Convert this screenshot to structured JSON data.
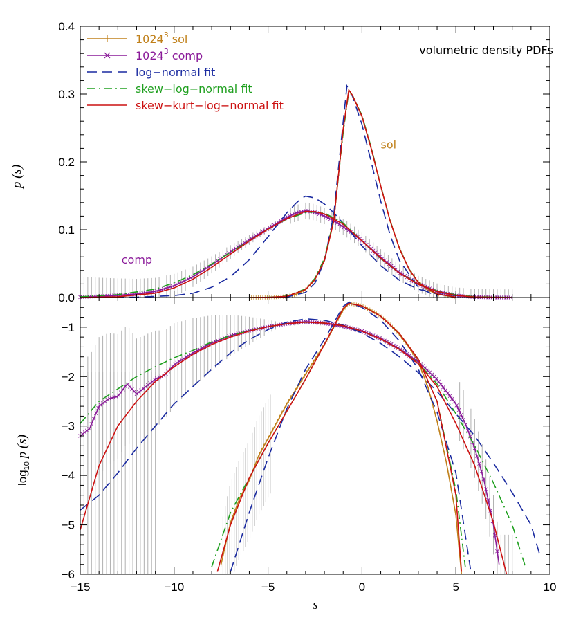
{
  "chart_data": [
    {
      "type": "line",
      "annotation": "volumetric density PDFs",
      "xlabel": "s",
      "ylabel": "p (s)",
      "xlim": [
        -15,
        10
      ],
      "ylim": [
        0,
        0.4
      ],
      "x_ticks": [
        "−15",
        "−10",
        "−5",
        "0",
        "5",
        "10"
      ],
      "y_ticks": [
        "0.0",
        "0.1",
        "0.2",
        "0.3",
        "0.4"
      ],
      "curve_labels": [
        {
          "text": "sol",
          "color": "#c0801a",
          "at": [
            1.0,
            0.22
          ]
        },
        {
          "text": "comp",
          "color": "#8a1a99",
          "at": [
            -12.8,
            0.05
          ]
        }
      ],
      "legend": {
        "placement": "top-left",
        "entries": [
          {
            "label": "1024",
            "sup": "3",
            "label2": "sol",
            "color": "#c0801a",
            "style": "solid-plus"
          },
          {
            "label": "1024",
            "sup": "3",
            "label2": "comp",
            "color": "#8a1a99",
            "style": "solid-x"
          },
          {
            "label": "log−normal fit",
            "color": "#1a2aa0",
            "style": "dashed"
          },
          {
            "label": "skew−log−normal fit",
            "color": "#20a020",
            "style": "dashdot"
          },
          {
            "label": "skew−kurt−log−normal fit",
            "color": "#cc1111",
            "style": "solid"
          }
        ]
      },
      "series": [
        {
          "name": "1024³ sol",
          "color": "#c0801a",
          "x": [
            -6,
            -5,
            -4,
            -3.5,
            -3,
            -2.5,
            -2,
            -1.5,
            -1,
            -0.7,
            -0.5,
            0,
            0.5,
            1,
            1.5,
            2,
            2.5,
            3,
            3.5,
            4,
            5
          ],
          "y": [
            0.0,
            0.0002,
            0.0016,
            0.0046,
            0.0117,
            0.0267,
            0.0544,
            0.1134,
            0.2478,
            0.306,
            0.298,
            0.267,
            0.219,
            0.164,
            0.113,
            0.072,
            0.042,
            0.022,
            0.011,
            0.005,
            0.0006
          ]
        },
        {
          "name": "1024³ comp",
          "color": "#8a1a99",
          "x": [
            -15,
            -14,
            -13,
            -12,
            -11,
            -10,
            -9,
            -8,
            -7,
            -6,
            -5,
            -4,
            -3.5,
            -3,
            -2.5,
            -2,
            -1.5,
            -1,
            -0.5,
            0,
            0.5,
            1,
            2,
            3,
            4,
            5,
            6,
            7,
            8
          ],
          "y": [
            0.0006,
            0.0017,
            0.0032,
            0.005,
            0.009,
            0.0174,
            0.0305,
            0.0481,
            0.0672,
            0.0852,
            0.1016,
            0.1181,
            0.1246,
            0.1279,
            0.1256,
            0.1201,
            0.1134,
            0.1043,
            0.0947,
            0.0837,
            0.0716,
            0.0593,
            0.0367,
            0.0199,
            0.0087,
            0.0029,
            0.0007,
            0.0001,
            0.0
          ]
        },
        {
          "name": "log−normal fit",
          "color": "#1a2aa0",
          "x": [
            -14,
            -12,
            -10,
            -9,
            -8,
            -7,
            -6,
            -5,
            -4.5,
            -4,
            -3.5,
            -3.2,
            -3,
            -2.5,
            -2,
            -1.5,
            -1,
            0,
            1,
            2,
            3,
            4,
            6,
            8
          ],
          "y": [
            0.0,
            0.0005,
            0.0029,
            0.0062,
            0.0152,
            0.0307,
            0.0556,
            0.0896,
            0.1075,
            0.1249,
            0.1393,
            0.1464,
            0.1494,
            0.1467,
            0.1378,
            0.1249,
            0.1096,
            0.0762,
            0.0466,
            0.0254,
            0.0122,
            0.0052,
            0.0007,
            0.0
          ]
        },
        {
          "name": "log−normal fit",
          "color": "#1a2aa0",
          "x": [
            -5,
            -4,
            -3,
            -2.5,
            -2,
            -1.5,
            -1,
            -0.8,
            -0.5,
            0,
            0.5,
            1,
            1.5,
            2,
            3,
            4
          ],
          "y": [
            0.0,
            0.0007,
            0.0076,
            0.0213,
            0.0537,
            0.1234,
            0.2586,
            0.3118,
            0.2965,
            0.2552,
            0.1991,
            0.1417,
            0.092,
            0.0545,
            0.0146,
            0.0018
          ]
        },
        {
          "name": "skew−log−normal fit",
          "color": "#20a020",
          "x": [
            -15,
            -13,
            -11,
            -10,
            -9,
            -8,
            -7,
            -6,
            -5,
            -4,
            -3,
            -2.5,
            -2,
            -1,
            0,
            1,
            2,
            3,
            4,
            5,
            6,
            8
          ],
          "y": [
            0.0011,
            0.0042,
            0.0124,
            0.0216,
            0.0336,
            0.0495,
            0.0664,
            0.0837,
            0.1007,
            0.1157,
            0.1251,
            0.1262,
            0.1247,
            0.1098,
            0.0838,
            0.0572,
            0.0359,
            0.0203,
            0.0098,
            0.0038,
            0.0012,
            0.0
          ]
        },
        {
          "name": "skew−log−normal fit",
          "color": "#20a020",
          "x": [
            -6,
            -5,
            -4,
            -3,
            -2.5,
            -2,
            -1.5,
            -1,
            -0.7,
            -0.5,
            0,
            0.5,
            1,
            1.5,
            2,
            2.5,
            3,
            4,
            5
          ],
          "y": [
            0.0,
            0.0003,
            0.0022,
            0.0128,
            0.0285,
            0.0577,
            0.1148,
            0.2426,
            0.3044,
            0.2981,
            0.2687,
            0.2207,
            0.1647,
            0.1138,
            0.0727,
            0.0424,
            0.0225,
            0.0047,
            0.0006
          ]
        },
        {
          "name": "skew−kurt−log−normal fit",
          "color": "#cc1111",
          "x": [
            -15,
            -13,
            -11,
            -10,
            -9,
            -8,
            -7,
            -6,
            -5,
            -4,
            -3,
            -2.5,
            -2,
            -1,
            0,
            1,
            2,
            3,
            4,
            5,
            6,
            8
          ],
          "y": [
            0.0,
            0.0011,
            0.0063,
            0.0142,
            0.027,
            0.0445,
            0.0641,
            0.0833,
            0.1008,
            0.1163,
            0.127,
            0.1266,
            0.1232,
            0.1081,
            0.0836,
            0.0581,
            0.0358,
            0.0194,
            0.009,
            0.0031,
            0.0007,
            0.0
          ]
        },
        {
          "name": "skew−kurt−log−normal fit",
          "color": "#cc1111",
          "x": [
            -6,
            -5,
            -4,
            -3,
            -2.5,
            -2,
            -1.5,
            -1,
            -0.7,
            -0.5,
            0,
            0.5,
            1,
            1.5,
            2,
            2.5,
            3,
            4,
            5
          ],
          "y": [
            0.0,
            0.0002,
            0.0017,
            0.0117,
            0.0267,
            0.0544,
            0.1134,
            0.2478,
            0.306,
            0.298,
            0.267,
            0.219,
            0.164,
            0.113,
            0.072,
            0.042,
            0.022,
            0.005,
            0.0005
          ]
        }
      ]
    },
    {
      "type": "line",
      "xlabel": "s",
      "ylabel": "log10 p (s)",
      "ylabel_main": "log",
      "ylabel_sub": "10",
      "ylabel_rest": " p (s)",
      "xlim": [
        -15,
        10
      ],
      "ylim": [
        -6,
        -0.4
      ],
      "x_ticks": [
        "−15",
        "−10",
        "−5",
        "0",
        "5",
        "10"
      ],
      "y_ticks": [
        "−1",
        "−2",
        "−3",
        "−4",
        "−5",
        "−6"
      ],
      "series": [
        {
          "name": "1024³ sol",
          "color": "#c0801a",
          "x": [
            -7.5,
            -7,
            -6.5,
            -6,
            -5.5,
            -5,
            -4.5,
            -4,
            -3.5,
            -3,
            -2.5,
            -2,
            -1.5,
            -1,
            -0.7,
            -0.5,
            0,
            0.5,
            1,
            1.5,
            2,
            2.5,
            3,
            3.5,
            4,
            4.5,
            5,
            5.3
          ],
          "y": [
            -5.8,
            -4.95,
            -4.45,
            -4.1,
            -3.6,
            -3.25,
            -2.9,
            -2.55,
            -2.25,
            -1.95,
            -1.65,
            -1.35,
            -1.0,
            -0.65,
            -0.52,
            -0.53,
            -0.57,
            -0.66,
            -0.78,
            -0.95,
            -1.15,
            -1.4,
            -1.7,
            -2.2,
            -2.9,
            -3.75,
            -4.8,
            -6.0
          ]
        },
        {
          "name": "1024³ comp",
          "color": "#8a1a99",
          "x": [
            -15,
            -14.5,
            -14,
            -13.5,
            -13,
            -12.5,
            -12,
            -11.5,
            -11,
            -10.5,
            -10,
            -9,
            -8,
            -7,
            -6,
            -5,
            -4,
            -3,
            -2,
            -1,
            0,
            1,
            2,
            3,
            4,
            5,
            5.5,
            6,
            6.5,
            7,
            7.3
          ],
          "y": [
            -3.2,
            -3.05,
            -2.6,
            -2.45,
            -2.4,
            -2.15,
            -2.35,
            -2.2,
            -2.05,
            -1.97,
            -1.76,
            -1.52,
            -1.32,
            -1.17,
            -1.07,
            -0.99,
            -0.93,
            -0.89,
            -0.92,
            -0.98,
            -1.08,
            -1.23,
            -1.44,
            -1.7,
            -2.06,
            -2.55,
            -2.95,
            -3.45,
            -4.1,
            -5.0,
            -5.8
          ]
        },
        {
          "name": "log−normal fit",
          "color": "#1a2aa0",
          "x": [
            -15,
            -14,
            -13,
            -12,
            -11,
            -10,
            -9,
            -8,
            -7,
            -6,
            -5,
            -4,
            -3,
            -2,
            -1,
            0,
            1,
            2,
            3,
            4,
            5,
            6,
            7,
            8,
            9,
            9.5
          ],
          "y": [
            -4.7,
            -4.4,
            -3.95,
            -3.45,
            -3.0,
            -2.55,
            -2.2,
            -1.85,
            -1.52,
            -1.25,
            -1.05,
            -0.9,
            -0.83,
            -0.86,
            -0.96,
            -1.12,
            -1.33,
            -1.6,
            -1.92,
            -2.3,
            -2.75,
            -3.2,
            -3.75,
            -4.35,
            -5.0,
            -5.65
          ]
        },
        {
          "name": "log−normal fit",
          "color": "#1a2aa0",
          "x": [
            -7,
            -6,
            -5,
            -4,
            -3,
            -2,
            -1,
            -0.7,
            0,
            1,
            2,
            3,
            4,
            5,
            5.8
          ],
          "y": [
            -5.95,
            -4.75,
            -3.65,
            -2.65,
            -1.85,
            -1.25,
            -0.58,
            -0.5,
            -0.6,
            -0.86,
            -1.28,
            -1.85,
            -2.72,
            -3.95,
            -5.95
          ]
        },
        {
          "name": "skew−log−normal fit",
          "color": "#20a020",
          "x": [
            -15,
            -14,
            -13,
            -12,
            -11,
            -10,
            -9,
            -8,
            -7,
            -6,
            -5,
            -4,
            -3,
            -2,
            -1,
            0,
            1,
            2,
            3,
            4,
            5,
            6,
            7,
            8,
            8.7
          ],
          "y": [
            -2.95,
            -2.5,
            -2.25,
            -2.0,
            -1.8,
            -1.62,
            -1.47,
            -1.3,
            -1.17,
            -1.07,
            -0.99,
            -0.93,
            -0.9,
            -0.92,
            -0.97,
            -1.08,
            -1.24,
            -1.45,
            -1.73,
            -2.15,
            -2.75,
            -3.4,
            -4.15,
            -5.0,
            -5.85
          ]
        },
        {
          "name": "skew−log−normal fit",
          "color": "#20a020",
          "x": [
            -8,
            -7,
            -6,
            -5,
            -4,
            -3,
            -2,
            -1,
            -0.7,
            0,
            1,
            2,
            3,
            4,
            5,
            5.5
          ],
          "y": [
            -5.85,
            -4.75,
            -4.05,
            -3.35,
            -2.7,
            -2.05,
            -1.35,
            -0.62,
            -0.52,
            -0.57,
            -0.78,
            -1.13,
            -1.65,
            -2.5,
            -4.3,
            -5.85
          ]
        },
        {
          "name": "skew−kurt−log−normal fit",
          "color": "#cc1111",
          "x": [
            -15,
            -14,
            -13,
            -12,
            -11,
            -10,
            -9,
            -8,
            -7,
            -6,
            -5,
            -4,
            -3,
            -2,
            -1,
            0,
            1,
            2,
            3,
            4,
            5,
            6,
            7,
            7.7
          ],
          "y": [
            -5.1,
            -3.8,
            -3.0,
            -2.5,
            -2.1,
            -1.8,
            -1.55,
            -1.35,
            -1.2,
            -1.08,
            -0.99,
            -0.93,
            -0.9,
            -0.92,
            -0.97,
            -1.08,
            -1.24,
            -1.45,
            -1.74,
            -2.2,
            -2.95,
            -3.8,
            -4.95,
            -6.0
          ]
        },
        {
          "name": "skew−kurt−log−normal fit",
          "color": "#cc1111",
          "x": [
            -7.7,
            -7,
            -6,
            -5,
            -4,
            -3,
            -2,
            -1,
            -0.7,
            0,
            1,
            2,
            3,
            4,
            5,
            5.3
          ],
          "y": [
            -5.95,
            -5.0,
            -4.05,
            -3.35,
            -2.7,
            -2.05,
            -1.35,
            -0.62,
            -0.52,
            -0.57,
            -0.78,
            -1.13,
            -1.65,
            -2.5,
            -4.4,
            -5.95
          ]
        }
      ]
    }
  ]
}
